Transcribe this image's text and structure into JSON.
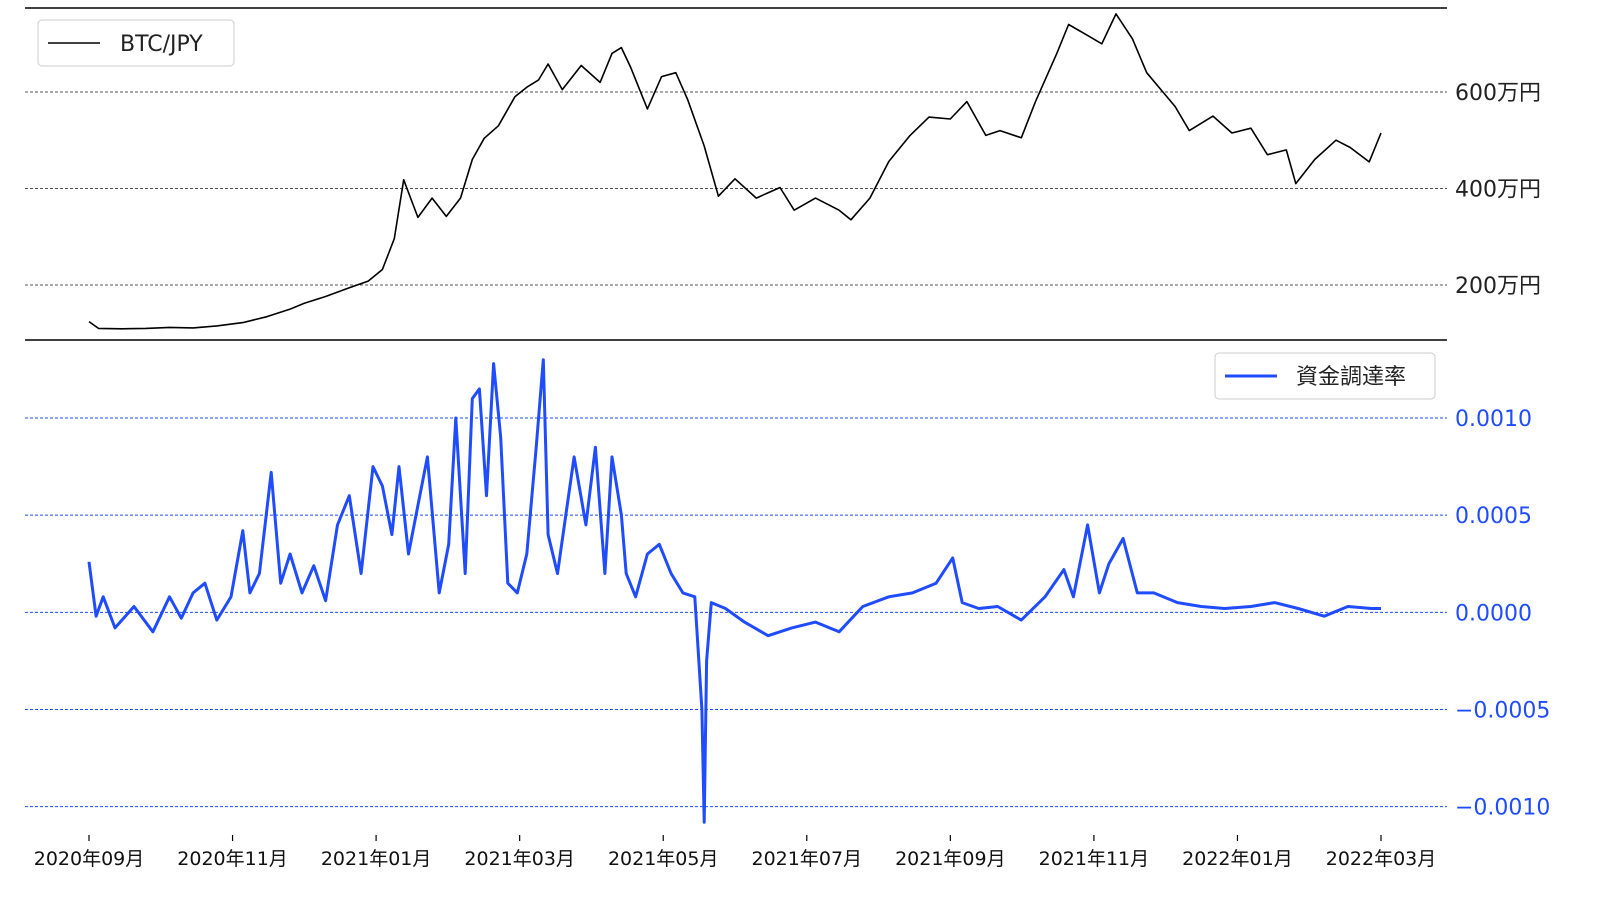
{
  "chart_data": [
    {
      "type": "line",
      "panel": "price",
      "legend_position": "top-left",
      "y_axis_side": "right",
      "grid": "horizontal dashed",
      "ylim": [
        90,
        770
      ],
      "unit_suffix": "万円",
      "yticks": [
        {
          "value": 200,
          "label": "200万円"
        },
        {
          "value": 400,
          "label": "400万円"
        },
        {
          "value": 600,
          "label": "600万円"
        }
      ],
      "colors": {
        "series": "#000000",
        "grid": "#555555",
        "tick_text": "#222222"
      },
      "series": [
        {
          "name": "BTC/JPY",
          "color": "#000000",
          "x": [
            "2020-09-01",
            "2020-09-05",
            "2020-09-15",
            "2020-09-25",
            "2020-10-05",
            "2020-10-15",
            "2020-10-25",
            "2020-11-05",
            "2020-11-15",
            "2020-11-25",
            "2020-12-01",
            "2020-12-10",
            "2020-12-20",
            "2020-12-28",
            "2021-01-03",
            "2021-01-08",
            "2021-01-12",
            "2021-01-18",
            "2021-01-24",
            "2021-01-30",
            "2021-02-05",
            "2021-02-10",
            "2021-02-15",
            "2021-02-21",
            "2021-02-28",
            "2021-03-05",
            "2021-03-10",
            "2021-03-14",
            "2021-03-20",
            "2021-03-28",
            "2021-04-05",
            "2021-04-10",
            "2021-04-14",
            "2021-04-18",
            "2021-04-25",
            "2021-05-01",
            "2021-05-07",
            "2021-05-12",
            "2021-05-19",
            "2021-05-25",
            "2021-06-01",
            "2021-06-10",
            "2021-06-20",
            "2021-06-26",
            "2021-07-05",
            "2021-07-15",
            "2021-07-20",
            "2021-07-28",
            "2021-08-05",
            "2021-08-14",
            "2021-08-22",
            "2021-08-31",
            "2021-09-07",
            "2021-09-15",
            "2021-09-21",
            "2021-09-30",
            "2021-10-06",
            "2021-10-15",
            "2021-10-20",
            "2021-10-27",
            "2021-11-03",
            "2021-11-09",
            "2021-11-16",
            "2021-11-22",
            "2021-11-28",
            "2021-12-04",
            "2021-12-10",
            "2021-12-20",
            "2021-12-28",
            "2022-01-05",
            "2022-01-12",
            "2022-01-20",
            "2022-01-24",
            "2022-02-01",
            "2022-02-10",
            "2022-02-16",
            "2022-02-24",
            "2022-03-01"
          ],
          "values": [
            124,
            110,
            109,
            110,
            112,
            111,
            115,
            122,
            134,
            150,
            162,
            176,
            194,
            208,
            232,
            296,
            418,
            340,
            380,
            342,
            380,
            460,
            504,
            530,
            590,
            610,
            625,
            658,
            605,
            655,
            620,
            680,
            692,
            650,
            565,
            632,
            640,
            584,
            488,
            384,
            420,
            380,
            402,
            355,
            380,
            355,
            335,
            380,
            456,
            510,
            548,
            544,
            580,
            510,
            520,
            505,
            580,
            680,
            740,
            720,
            700,
            762,
            710,
            640,
            605,
            570,
            520,
            550,
            515,
            525,
            470,
            480,
            410,
            460,
            500,
            485,
            455,
            515
          ]
        }
      ]
    },
    {
      "type": "line",
      "panel": "funding_rate",
      "legend_position": "top-right",
      "y_axis_side": "right",
      "grid": "horizontal dashed",
      "ylim": [
        -0.00112,
        0.00135
      ],
      "yticks": [
        {
          "value": 0.001,
          "label": "0.0010"
        },
        {
          "value": 0.0005,
          "label": "0.0005"
        },
        {
          "value": 0.0,
          "label": "0.0000"
        },
        {
          "value": -0.0005,
          "label": "−0.0005"
        },
        {
          "value": -0.001,
          "label": "−0.0010"
        }
      ],
      "colors": {
        "series": "#1f4cff",
        "grid": "#1f4cff",
        "tick_text": "#1f4cff"
      },
      "xticks": [
        "2020年09月",
        "2020年11月",
        "2021年01月",
        "2021年03月",
        "2021年05月",
        "2021年07月",
        "2021年09月",
        "2021年11月",
        "2022年01月",
        "2022年03月"
      ],
      "series": [
        {
          "name": "資金調達率",
          "color": "#1f4cff",
          "x": [
            "2020-09-01",
            "2020-09-04",
            "2020-09-07",
            "2020-09-12",
            "2020-09-20",
            "2020-09-28",
            "2020-10-05",
            "2020-10-10",
            "2020-10-15",
            "2020-10-20",
            "2020-10-25",
            "2020-10-31",
            "2020-11-05",
            "2020-11-08",
            "2020-11-12",
            "2020-11-17",
            "2020-11-21",
            "2020-11-25",
            "2020-11-30",
            "2020-12-05",
            "2020-12-10",
            "2020-12-15",
            "2020-12-20",
            "2020-12-25",
            "2020-12-30",
            "2021-01-03",
            "2021-01-07",
            "2021-01-10",
            "2021-01-14",
            "2021-01-18",
            "2021-01-22",
            "2021-01-27",
            "2021-01-31",
            "2021-02-03",
            "2021-02-07",
            "2021-02-10",
            "2021-02-13",
            "2021-02-16",
            "2021-02-19",
            "2021-02-22",
            "2021-02-25",
            "2021-03-01",
            "2021-03-05",
            "2021-03-09",
            "2021-03-12",
            "2021-03-14",
            "2021-03-18",
            "2021-03-25",
            "2021-03-30",
            "2021-04-03",
            "2021-04-07",
            "2021-04-10",
            "2021-04-14",
            "2021-04-16",
            "2021-04-20",
            "2021-04-25",
            "2021-04-30",
            "2021-05-05",
            "2021-05-10",
            "2021-05-15",
            "2021-05-18",
            "2021-05-19",
            "2021-05-20",
            "2021-05-22",
            "2021-05-28",
            "2021-06-05",
            "2021-06-15",
            "2021-06-25",
            "2021-07-05",
            "2021-07-15",
            "2021-07-25",
            "2021-08-05",
            "2021-08-15",
            "2021-08-25",
            "2021-09-01",
            "2021-09-05",
            "2021-09-12",
            "2021-09-20",
            "2021-09-30",
            "2021-10-10",
            "2021-10-18",
            "2021-10-22",
            "2021-10-28",
            "2021-11-02",
            "2021-11-06",
            "2021-11-12",
            "2021-11-18",
            "2021-11-25",
            "2021-12-05",
            "2021-12-15",
            "2021-12-25",
            "2022-01-05",
            "2022-01-15",
            "2022-01-25",
            "2022-02-05",
            "2022-02-15",
            "2022-02-25",
            "2022-03-01"
          ],
          "values": [
            0.00026,
            -2e-05,
            8e-05,
            -8e-05,
            3e-05,
            -0.0001,
            8e-05,
            -3e-05,
            0.0001,
            0.00015,
            -4e-05,
            8e-05,
            0.00042,
            0.0001,
            0.0002,
            0.00072,
            0.00015,
            0.0003,
            0.0001,
            0.00024,
            6e-05,
            0.00045,
            0.0006,
            0.0002,
            0.00075,
            0.00065,
            0.0004,
            0.00075,
            0.0003,
            0.00055,
            0.0008,
            0.0001,
            0.00035,
            0.001,
            0.0002,
            0.0011,
            0.00115,
            0.0006,
            0.00128,
            0.0009,
            0.00015,
            0.0001,
            0.0003,
            0.00085,
            0.0013,
            0.0004,
            0.0002,
            0.0008,
            0.00045,
            0.00085,
            0.0002,
            0.0008,
            0.0005,
            0.0002,
            8e-05,
            0.0003,
            0.00035,
            0.0002,
            0.0001,
            8e-05,
            -0.0005,
            -0.00108,
            -0.00025,
            5e-05,
            2e-05,
            -5e-05,
            -0.00012,
            -8e-05,
            -5e-05,
            -0.0001,
            3e-05,
            8e-05,
            0.0001,
            0.00015,
            0.00028,
            5e-05,
            2e-05,
            3e-05,
            -4e-05,
            8e-05,
            0.00022,
            8e-05,
            0.00045,
            0.0001,
            0.00025,
            0.00038,
            0.0001,
            0.0001,
            5e-05,
            3e-05,
            2e-05,
            3e-05,
            5e-05,
            2e-05,
            -2e-05,
            3e-05,
            2e-05,
            2e-05
          ]
        }
      ]
    }
  ]
}
